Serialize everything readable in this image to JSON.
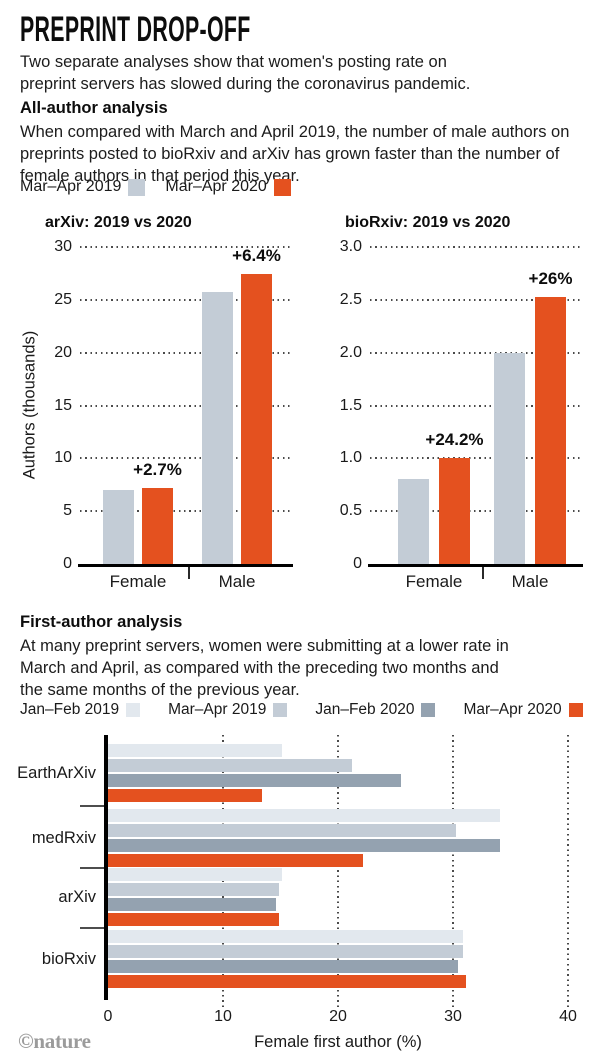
{
  "page": {
    "title": "PREPRINT DROP-OFF",
    "intro": "Two separate analyses show that women's posting rate on\npreprint servers has slowed during the coronavirus pandemic.",
    "footer": "©nature"
  },
  "colors": {
    "orange": "#E4511F",
    "gray_mid": "#C3CCD6",
    "gray_light": "#E2E8EE",
    "gray_dark": "#94A2B0",
    "text": "#1C1C1C",
    "footer_gray": "#9B9B9B"
  },
  "all_author": {
    "heading": "All-author analysis",
    "body": "When compared with March and April 2019, the number of male authors on\npreprints posted to bioRxiv and arXiv has grown faster than the number of\nfemale authors in that period this year.",
    "legend": [
      {
        "label": "Mar–Apr 2019",
        "color": "#C3CCD6"
      },
      {
        "label": "Mar–Apr 2020",
        "color": "#E4511F"
      }
    ]
  },
  "first_author": {
    "heading": "First-author analysis",
    "body": "At many preprint servers, women were submitting at a lower rate in\nMarch and April, as compared with the preceding two months and\nthe same months of the previous year.",
    "legend": [
      {
        "label": "Jan–Feb 2019",
        "color": "#E2E8EE"
      },
      {
        "label": "Mar–Apr 2019",
        "color": "#C3CCD6"
      },
      {
        "label": "Jan–Feb 2020",
        "color": "#94A2B0"
      },
      {
        "label": "Mar–Apr 2020",
        "color": "#E4511F"
      }
    ]
  },
  "chart_data": [
    {
      "type": "bar",
      "title": "arXiv: 2019 vs 2020",
      "ylabel": "Authors (thousands)",
      "categories": [
        "Female",
        "Male"
      ],
      "series": [
        {
          "name": "Mar–Apr 2019",
          "color": "#C3CCD6",
          "values": [
            7.0,
            25.7
          ]
        },
        {
          "name": "Mar–Apr 2020",
          "color": "#E4511F",
          "values": [
            7.2,
            27.4
          ]
        }
      ],
      "annotations": [
        "+2.7%",
        "+6.4%"
      ],
      "yticks": [
        "0",
        "5",
        "10",
        "15",
        "20",
        "25",
        "30"
      ],
      "ylim": [
        0,
        30
      ],
      "grid": "dotted-horizontal",
      "legend_position": "above"
    },
    {
      "type": "bar",
      "title": "bioRxiv: 2019 vs 2020",
      "ylabel": "Authors (thousands)",
      "categories": [
        "Female",
        "Male"
      ],
      "series": [
        {
          "name": "Mar–Apr 2019",
          "color": "#C3CCD6",
          "values": [
            0.8,
            2.0
          ]
        },
        {
          "name": "Mar–Apr 2020",
          "color": "#E4511F",
          "values": [
            1.0,
            2.53
          ]
        }
      ],
      "annotations": [
        "+24.2%",
        "+26%"
      ],
      "yticks": [
        "0",
        "0.5",
        "1.0",
        "1.5",
        "2.0",
        "2.5",
        "3.0"
      ],
      "ylim": [
        0,
        3
      ],
      "grid": "dotted-horizontal",
      "legend_position": "above"
    },
    {
      "type": "bar-horizontal",
      "title": "",
      "xlabel": "Female first author (%)",
      "categories": [
        "EarthArXiv",
        "medRxiv",
        "arXiv",
        "bioRxiv"
      ],
      "series": [
        {
          "name": "Jan–Feb 2019",
          "color": "#E2E8EE",
          "values": [
            15.1,
            34.1,
            15.1,
            30.9
          ]
        },
        {
          "name": "Mar–Apr 2019",
          "color": "#C3CCD6",
          "values": [
            21.2,
            30.3,
            14.9,
            30.9
          ]
        },
        {
          "name": "Jan–Feb 2020",
          "color": "#94A2B0",
          "values": [
            25.5,
            34.1,
            14.6,
            30.4
          ]
        },
        {
          "name": "Mar–Apr 2020",
          "color": "#E4511F",
          "values": [
            13.4,
            22.2,
            14.9,
            31.1
          ]
        }
      ],
      "xticks": [
        0,
        10,
        20,
        30,
        40
      ],
      "xlim": [
        0,
        40
      ],
      "grid": "dotted-vertical",
      "legend_position": "above"
    }
  ]
}
